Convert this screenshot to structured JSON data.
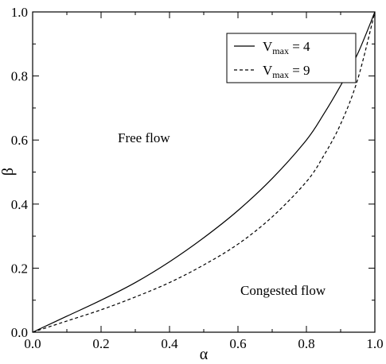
{
  "chart_data": {
    "type": "line",
    "title": "",
    "xlabel": "α",
    "ylabel": "β",
    "xlim": [
      0.0,
      1.0
    ],
    "ylim": [
      0.0,
      1.0
    ],
    "grid": false,
    "legend_position": "top-right",
    "x_ticks": [
      "0.0",
      "0.2",
      "0.4",
      "0.6",
      "0.8",
      "1.0"
    ],
    "y_ticks": [
      "0.0",
      "0.2",
      "0.4",
      "0.6",
      "0.8",
      "1.0"
    ],
    "annotations": {
      "free_flow": "Free flow",
      "congested_flow": "Congested flow"
    },
    "series": [
      {
        "name": "V_max = 4",
        "legend_base": "V",
        "legend_sub": "max",
        "legend_rest": " = 4",
        "style": "solid",
        "x": [
          0.0,
          0.1,
          0.2,
          0.3,
          0.4,
          0.5,
          0.6,
          0.7,
          0.8,
          0.85,
          0.9,
          0.95,
          1.0
        ],
        "y": [
          0.0,
          0.05,
          0.1,
          0.155,
          0.22,
          0.295,
          0.38,
          0.48,
          0.6,
          0.68,
          0.77,
          0.87,
          1.0
        ]
      },
      {
        "name": "V_max = 9",
        "legend_base": "V",
        "legend_sub": "max",
        "legend_rest": " = 9",
        "style": "dashed",
        "x": [
          0.0,
          0.1,
          0.2,
          0.3,
          0.4,
          0.5,
          0.6,
          0.7,
          0.8,
          0.85,
          0.9,
          0.95,
          1.0
        ],
        "y": [
          0.0,
          0.035,
          0.07,
          0.11,
          0.155,
          0.21,
          0.275,
          0.36,
          0.47,
          0.55,
          0.65,
          0.79,
          1.0
        ]
      }
    ]
  }
}
